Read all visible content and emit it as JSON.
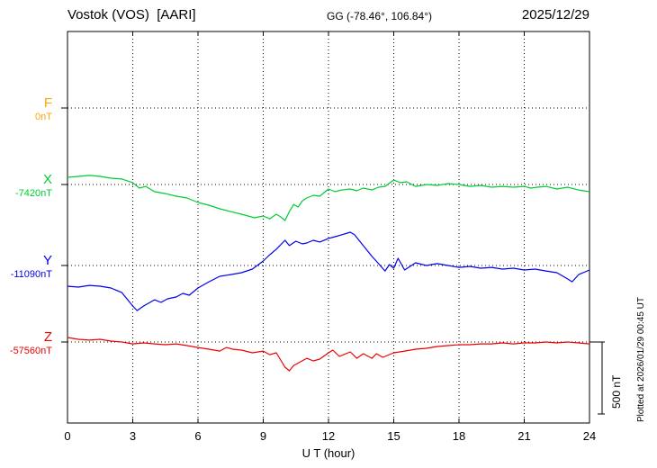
{
  "chart_data": {
    "type": "line",
    "title": "Vostok (VOS)  [AARI]",
    "subtitle": "GG (-78.46°, 106.84°)",
    "date": "2025/12/29",
    "xlabel": "U T (hour)",
    "x_range": [
      0,
      24
    ],
    "x_ticks": [
      0,
      3,
      6,
      9,
      12,
      15,
      18,
      21,
      24
    ],
    "grid": "dotted",
    "scale_bar": {
      "label": "500 nT",
      "nT": 500
    },
    "plotted_at": "Plotted at 2026/01/29 00:45 UT",
    "series": [
      {
        "id": "F",
        "label": "F",
        "baseline_label": "0nT",
        "color": "#FFA500",
        "unit": "nT",
        "t": [],
        "offset_nT": []
      },
      {
        "id": "X",
        "label": "X",
        "baseline_label": "-7420nT",
        "color": "#00CC33",
        "unit": "nT",
        "t": [
          0,
          0.5,
          1,
          1.5,
          2,
          2.5,
          3,
          3.3,
          3.6,
          4,
          4.5,
          5,
          5.5,
          6,
          6.5,
          7,
          7.5,
          8,
          8.3,
          8.6,
          9,
          9.3,
          9.6,
          9.8,
          10,
          10.2,
          10.4,
          10.6,
          10.8,
          11,
          11.3,
          11.6,
          12,
          12.3,
          12.6,
          13,
          13.3,
          13.6,
          14,
          14.3,
          14.6,
          15,
          15.3,
          15.6,
          16,
          16.5,
          17,
          17.5,
          18,
          18.5,
          19,
          19.5,
          20,
          20.5,
          21,
          21.3,
          21.6,
          22,
          22.5,
          23,
          23.5,
          24
        ],
        "offset_nT": [
          50,
          56,
          63,
          56,
          44,
          38,
          13,
          -25,
          -13,
          -50,
          -63,
          -81,
          -94,
          -125,
          -144,
          -169,
          -188,
          -206,
          -219,
          -231,
          -219,
          -238,
          -206,
          -225,
          -250,
          -188,
          -138,
          -156,
          -113,
          -94,
          -75,
          -81,
          -31,
          -50,
          -38,
          -31,
          -44,
          -25,
          -38,
          -19,
          -13,
          31,
          13,
          19,
          -13,
          0,
          -6,
          6,
          0,
          -13,
          -6,
          -19,
          -13,
          -19,
          -13,
          -25,
          -19,
          -13,
          -31,
          -19,
          -38,
          -50
        ]
      },
      {
        "id": "Y",
        "label": "Y",
        "baseline_label": "-11090nT",
        "color": "#0000EE",
        "unit": "nT",
        "t": [
          0,
          0.5,
          1,
          1.5,
          2,
          2.5,
          3,
          3.2,
          3.5,
          4,
          4.3,
          4.6,
          5,
          5.3,
          5.6,
          6,
          6.5,
          7,
          7.5,
          8,
          8.5,
          9,
          9.3,
          9.6,
          10,
          10.2,
          10.5,
          10.8,
          11,
          11.3,
          11.6,
          12,
          12.3,
          12.6,
          13,
          13.2,
          13.5,
          14,
          14.3,
          14.6,
          14.8,
          15,
          15.2,
          15.5,
          16,
          16.5,
          17,
          17.5,
          18,
          18.5,
          19,
          19.5,
          20,
          20.5,
          21,
          21.5,
          22,
          22.5,
          23,
          23.2,
          23.5,
          24
        ],
        "offset_nT": [
          -144,
          -150,
          -138,
          -144,
          -156,
          -188,
          -281,
          -313,
          -281,
          -238,
          -256,
          -231,
          -219,
          -194,
          -206,
          -156,
          -113,
          -75,
          -63,
          -50,
          -25,
          31,
          75,
          113,
          175,
          138,
          169,
          150,
          156,
          175,
          163,
          188,
          200,
          213,
          231,
          213,
          156,
          63,
          13,
          -38,
          6,
          -19,
          50,
          -31,
          19,
          0,
          13,
          0,
          -13,
          -6,
          -19,
          -13,
          -25,
          -19,
          -31,
          -25,
          -38,
          -50,
          -94,
          -113,
          -63,
          -31
        ]
      },
      {
        "id": "Z",
        "label": "Z",
        "baseline_label": "-57560nT",
        "color": "#EE0000",
        "unit": "nT",
        "t": [
          0,
          0.5,
          1,
          1.5,
          2,
          2.5,
          3,
          3.5,
          4,
          4.5,
          5,
          5.5,
          6,
          6.5,
          7,
          7.3,
          7.6,
          8,
          8.5,
          9,
          9.3,
          9.6,
          10,
          10.2,
          10.4,
          10.7,
          11,
          11.3,
          11.6,
          12,
          12.2,
          12.5,
          13,
          13.3,
          13.6,
          14,
          14.2,
          14.5,
          15,
          15.5,
          16,
          16.5,
          17,
          17.5,
          18,
          18.5,
          19,
          19.5,
          20,
          20.5,
          21,
          21.5,
          22,
          22.5,
          23,
          23.5,
          24
        ],
        "offset_nT": [
          31,
          19,
          13,
          19,
          6,
          0,
          -13,
          -6,
          -13,
          -19,
          -13,
          -25,
          -38,
          -50,
          -63,
          -38,
          -50,
          -56,
          -75,
          -63,
          -88,
          -75,
          -175,
          -200,
          -163,
          -138,
          -113,
          -131,
          -119,
          -75,
          -56,
          -100,
          -69,
          -113,
          -81,
          -113,
          -81,
          -106,
          -75,
          -63,
          -50,
          -44,
          -31,
          -25,
          -19,
          -19,
          -13,
          -13,
          -6,
          -13,
          -6,
          -6,
          0,
          -6,
          0,
          -6,
          -13
        ]
      }
    ]
  }
}
